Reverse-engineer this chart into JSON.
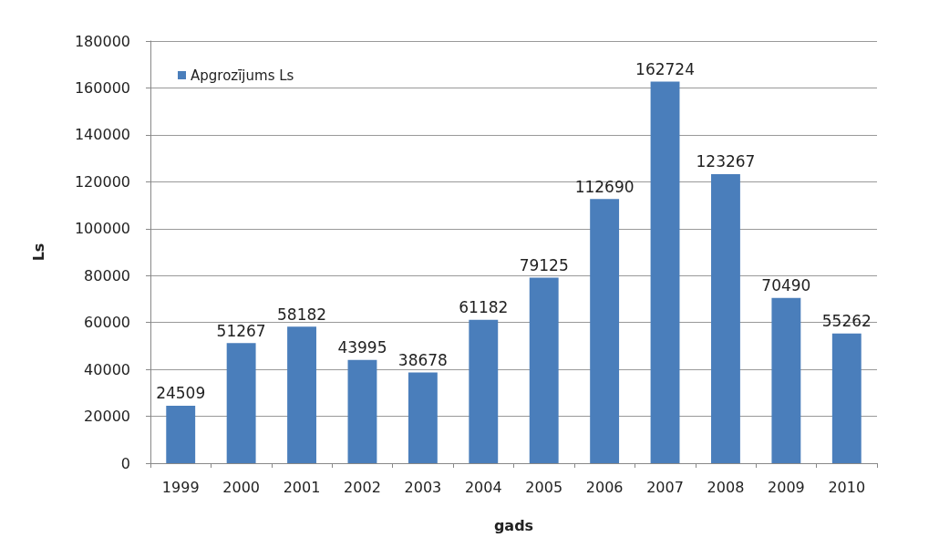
{
  "chart_data": {
    "type": "bar",
    "xlabel": "gads",
    "ylabel": "Ls",
    "categories": [
      "1999",
      "2000",
      "2001",
      "2002",
      "2003",
      "2004",
      "2005",
      "2006",
      "2007",
      "2008",
      "2009",
      "2010"
    ],
    "series": [
      {
        "name": "Apgrozījums Ls",
        "color": "#4a7ebb",
        "values": [
          24509,
          51267,
          58182,
          43995,
          38678,
          61182,
          79125,
          112690,
          162724,
          123267,
          70490,
          55262
        ]
      }
    ],
    "ylim": [
      0,
      180000
    ],
    "yticks": [
      0,
      20000,
      40000,
      60000,
      80000,
      100000,
      120000,
      140000,
      160000,
      180000
    ],
    "grid": "y",
    "legend": "top left",
    "data_labels": true
  }
}
